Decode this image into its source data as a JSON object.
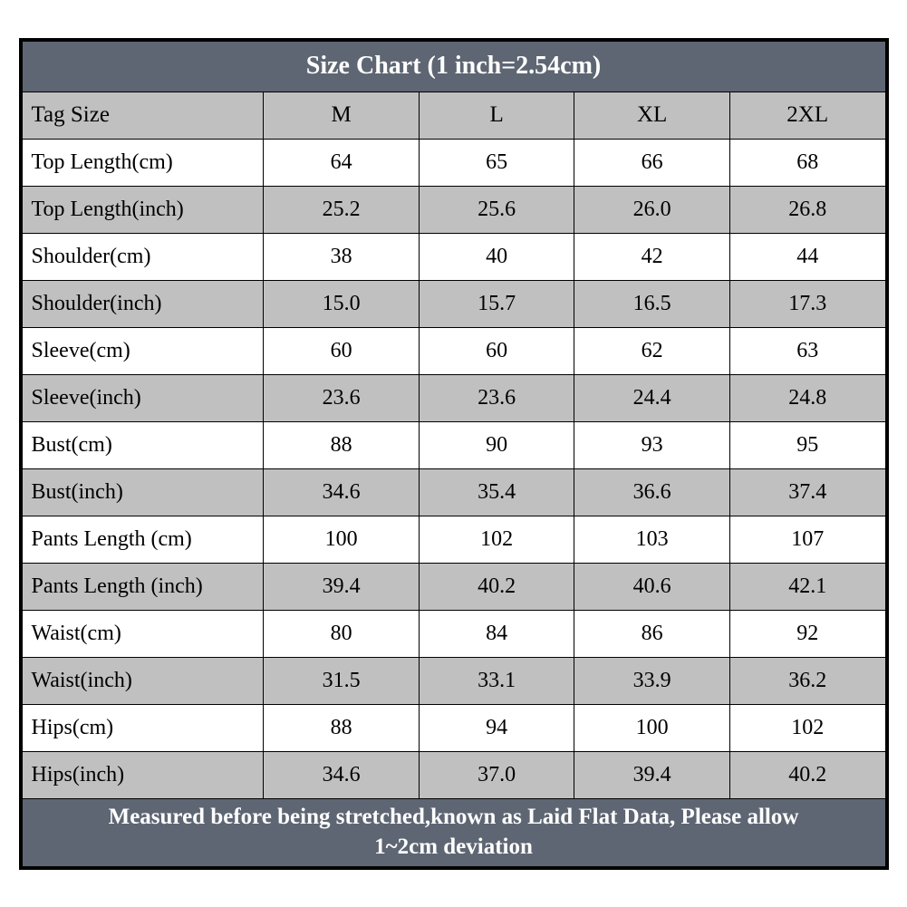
{
  "table": {
    "type": "table",
    "title": "Size Chart (1 inch=2.54cm)",
    "footer_line1": "Measured before being stretched,known as Laid Flat Data, Please allow",
    "footer_line2": "1~2cm deviation",
    "title_bg": "#5e6673",
    "title_color": "#ffffff",
    "title_fontsize": 28,
    "header_bg": "#c0c0c0",
    "row_white_bg": "#ffffff",
    "row_gray_bg": "#c0c0c0",
    "border_color": "#000000",
    "cell_fontsize": 24,
    "footer_bg": "#5e6673",
    "footer_color": "#ffffff",
    "footer_fontsize": 25,
    "col_widths": [
      "28%",
      "18%",
      "18%",
      "18%",
      "18%"
    ],
    "columns": [
      "Tag Size",
      "M",
      "L",
      "XL",
      "2XL"
    ],
    "rows": [
      {
        "label": "Top Length(cm)",
        "vals": [
          "64",
          "65",
          "66",
          "68"
        ],
        "shade": "white"
      },
      {
        "label": "Top Length(inch)",
        "vals": [
          "25.2",
          "25.6",
          "26.0",
          "26.8"
        ],
        "shade": "gray"
      },
      {
        "label": "Shoulder(cm)",
        "vals": [
          "38",
          "40",
          "42",
          "44"
        ],
        "shade": "white"
      },
      {
        "label": "Shoulder(inch)",
        "vals": [
          "15.0",
          "15.7",
          "16.5",
          "17.3"
        ],
        "shade": "gray"
      },
      {
        "label": "Sleeve(cm)",
        "vals": [
          "60",
          "60",
          "62",
          "63"
        ],
        "shade": "white"
      },
      {
        "label": "Sleeve(inch)",
        "vals": [
          "23.6",
          "23.6",
          "24.4",
          "24.8"
        ],
        "shade": "gray"
      },
      {
        "label": "Bust(cm)",
        "vals": [
          "88",
          "90",
          "93",
          "95"
        ],
        "shade": "white"
      },
      {
        "label": "Bust(inch)",
        "vals": [
          "34.6",
          "35.4",
          "36.6",
          "37.4"
        ],
        "shade": "gray"
      },
      {
        "label": "Pants Length  (cm)",
        "vals": [
          "100",
          "102",
          "103",
          "107"
        ],
        "shade": "white"
      },
      {
        "label": "Pants Length  (inch)",
        "vals": [
          "39.4",
          "40.2",
          "40.6",
          "42.1"
        ],
        "shade": "gray"
      },
      {
        "label": "Waist(cm)",
        "vals": [
          "80",
          "84",
          "86",
          "92"
        ],
        "shade": "white"
      },
      {
        "label": "Waist(inch)",
        "vals": [
          "31.5",
          "33.1",
          "33.9",
          "36.2"
        ],
        "shade": "gray"
      },
      {
        "label": "Hips(cm)",
        "vals": [
          "88",
          "94",
          "100",
          "102"
        ],
        "shade": "white"
      },
      {
        "label": "Hips(inch)",
        "vals": [
          "34.6",
          "37.0",
          "39.4",
          "40.2"
        ],
        "shade": "gray"
      }
    ]
  }
}
